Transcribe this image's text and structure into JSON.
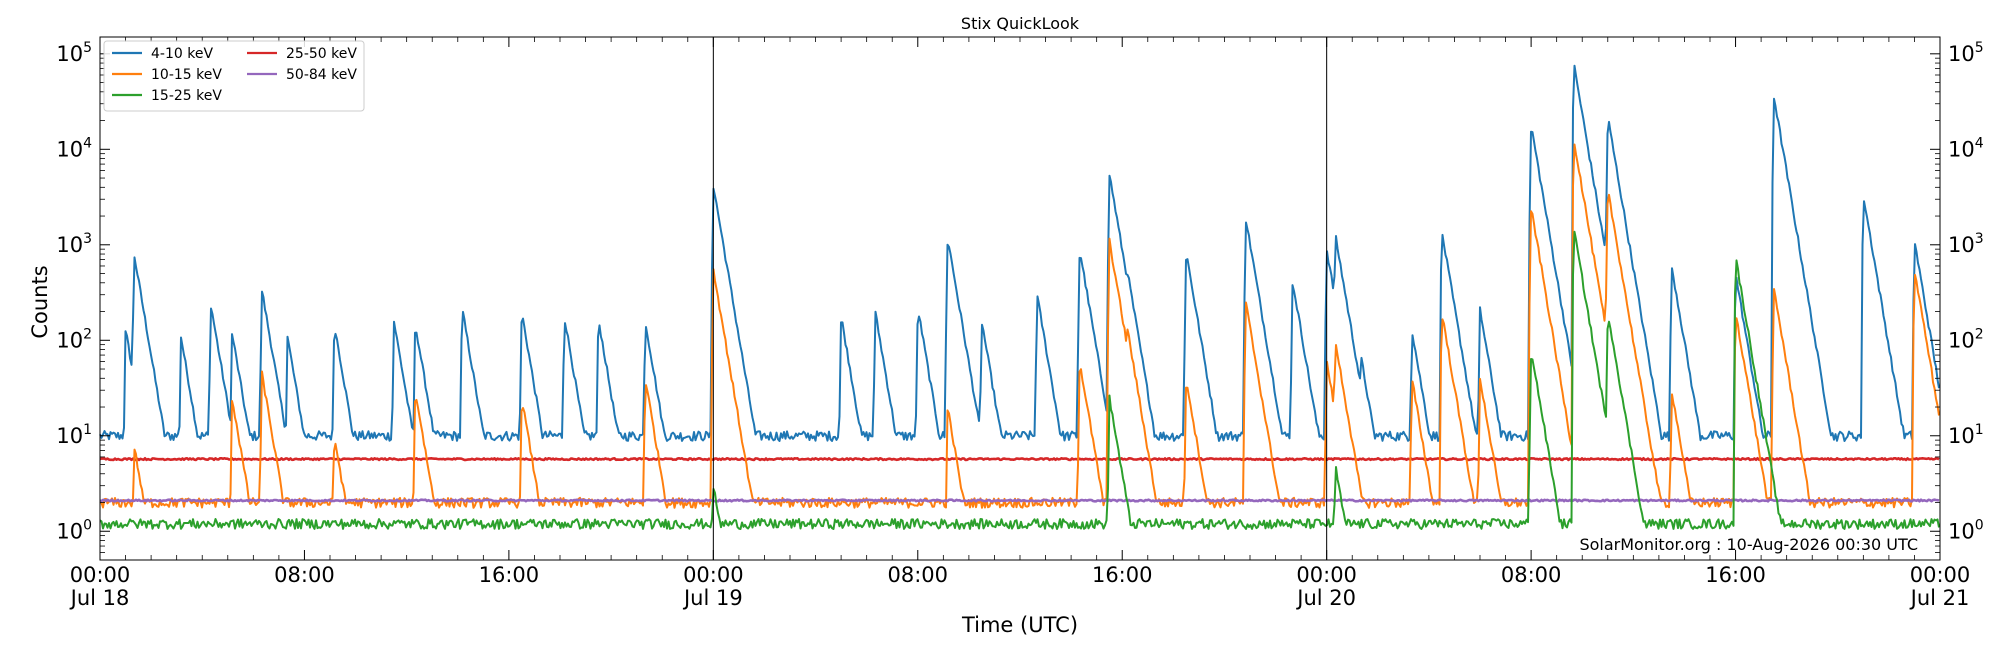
{
  "chart_data": {
    "type": "line",
    "title": "Stix QuickLook",
    "xlabel": "Time (UTC)",
    "ylabel": "Counts",
    "yscale": "log",
    "ylim": [
      0.5,
      150000
    ],
    "xlim": [
      "2026-07-18 00:00",
      "2026-07-21 00:00"
    ],
    "grid": false,
    "legend_position": "top-left",
    "annotation": "SolarMonitor.org : 10-Aug-2026 00:30 UTC",
    "day_separators": [
      "2026-07-19 00:00",
      "2026-07-20 00:00"
    ],
    "x_ticks": [
      {
        "time": "2026-07-18 00:00",
        "label": "00:00",
        "date": "Jul 18"
      },
      {
        "time": "2026-07-18 08:00",
        "label": "08:00",
        "date": ""
      },
      {
        "time": "2026-07-18 16:00",
        "label": "16:00",
        "date": ""
      },
      {
        "time": "2026-07-19 00:00",
        "label": "00:00",
        "date": "Jul 19"
      },
      {
        "time": "2026-07-19 08:00",
        "label": "08:00",
        "date": ""
      },
      {
        "time": "2026-07-19 16:00",
        "label": "16:00",
        "date": ""
      },
      {
        "time": "2026-07-20 00:00",
        "label": "00:00",
        "date": "Jul 20"
      },
      {
        "time": "2026-07-20 08:00",
        "label": "08:00",
        "date": ""
      },
      {
        "time": "2026-07-20 16:00",
        "label": "16:00",
        "date": ""
      },
      {
        "time": "2026-07-21 00:00",
        "label": "00:00",
        "date": "Jul 21"
      }
    ],
    "y_ticks": [
      {
        "value": 1,
        "base": "10",
        "exp": "0"
      },
      {
        "value": 10,
        "base": "10",
        "exp": "1"
      },
      {
        "value": 100,
        "base": "10",
        "exp": "2"
      },
      {
        "value": 1000,
        "base": "10",
        "exp": "3"
      },
      {
        "value": 10000,
        "base": "10",
        "exp": "4"
      },
      {
        "value": 100000,
        "base": "10",
        "exp": "5"
      }
    ],
    "series": [
      {
        "name": "4-10 keV",
        "color": "#1f77b4",
        "background": 10,
        "x": [
          "2026-07-18 00:00",
          "2026-07-18 01:00",
          "2026-07-18 01:20",
          "2026-07-18 01:50",
          "2026-07-18 03:10",
          "2026-07-18 04:20",
          "2026-07-18 05:10",
          "2026-07-18 06:20",
          "2026-07-18 07:20",
          "2026-07-18 09:10",
          "2026-07-18 11:30",
          "2026-07-18 12:20",
          "2026-07-18 14:10",
          "2026-07-18 16:30",
          "2026-07-18 18:10",
          "2026-07-18 19:30",
          "2026-07-18 21:20",
          "2026-07-19 00:00",
          "2026-07-19 01:00",
          "2026-07-19 05:00",
          "2026-07-19 06:20",
          "2026-07-19 08:00",
          "2026-07-19 09:10",
          "2026-07-19 10:30",
          "2026-07-19 12:40",
          "2026-07-19 14:20",
          "2026-07-19 15:30",
          "2026-07-19 16:10",
          "2026-07-19 18:30",
          "2026-07-19 20:50",
          "2026-07-19 22:40",
          "2026-07-20 00:00",
          "2026-07-20 00:20",
          "2026-07-20 01:20",
          "2026-07-20 03:20",
          "2026-07-20 04:30",
          "2026-07-20 06:00",
          "2026-07-20 08:00",
          "2026-07-20 08:40",
          "2026-07-20 09:40",
          "2026-07-20 10:10",
          "2026-07-20 11:00",
          "2026-07-20 13:30",
          "2026-07-20 16:00",
          "2026-07-20 17:30",
          "2026-07-20 18:30",
          "2026-07-20 21:00",
          "2026-07-20 23:00",
          "2026-07-21 00:00"
        ],
        "y": [
          10,
          130,
          800,
          100,
          110,
          240,
          120,
          340,
          110,
          150,
          160,
          150,
          220,
          200,
          180,
          170,
          160,
          4200,
          30,
          180,
          200,
          220,
          1200,
          160,
          300,
          900,
          5500,
          600,
          850,
          1900,
          420,
          900,
          1300,
          70,
          130,
          1400,
          210,
          18000,
          900,
          80000,
          400,
          22000,
          600,
          500,
          36000,
          400,
          3300,
          1100,
          10
        ]
      },
      {
        "name": "10-15 keV",
        "color": "#ff7f0e",
        "background": 2,
        "x": [
          "2026-07-18 00:00",
          "2026-07-18 01:20",
          "2026-07-18 05:10",
          "2026-07-18 06:20",
          "2026-07-18 09:10",
          "2026-07-18 12:20",
          "2026-07-18 16:30",
          "2026-07-18 21:20",
          "2026-07-19 00:00",
          "2026-07-19 09:10",
          "2026-07-19 14:20",
          "2026-07-19 15:30",
          "2026-07-19 16:10",
          "2026-07-19 18:30",
          "2026-07-19 20:50",
          "2026-07-20 00:00",
          "2026-07-20 00:20",
          "2026-07-20 03:20",
          "2026-07-20 04:30",
          "2026-07-20 06:00",
          "2026-07-20 08:00",
          "2026-07-20 09:40",
          "2026-07-20 11:00",
          "2026-07-20 13:30",
          "2026-07-20 16:00",
          "2026-07-20 17:30",
          "2026-07-20 23:00",
          "2026-07-21 00:00"
        ],
        "y": [
          2,
          8,
          25,
          45,
          10,
          30,
          25,
          40,
          550,
          20,
          60,
          1100,
          150,
          40,
          250,
          60,
          100,
          40,
          200,
          40,
          2500,
          13000,
          3800,
          30,
          200,
          350,
          550,
          2
        ]
      },
      {
        "name": "15-25 keV",
        "color": "#2ca02c",
        "background": 1.2,
        "x": [
          "2026-07-18 00:00",
          "2026-07-19 00:00",
          "2026-07-19 15:30",
          "2026-07-20 00:20",
          "2026-07-20 08:00",
          "2026-07-20 09:40",
          "2026-07-20 11:00",
          "2026-07-20 16:00",
          "2026-07-21 00:00"
        ],
        "y": [
          1.2,
          3,
          25,
          5,
          80,
          1500,
          200,
          750,
          1.2
        ]
      },
      {
        "name": "25-50 keV",
        "color": "#d62728",
        "background": 5.7,
        "x": [
          "2026-07-18 00:00",
          "2026-07-21 00:00"
        ],
        "y": [
          5.7,
          5.7
        ]
      },
      {
        "name": "50-84 keV",
        "color": "#9467bd",
        "background": 2.1,
        "x": [
          "2026-07-18 00:00",
          "2026-07-21 00:00"
        ],
        "y": [
          2.1,
          2.1
        ]
      }
    ]
  }
}
